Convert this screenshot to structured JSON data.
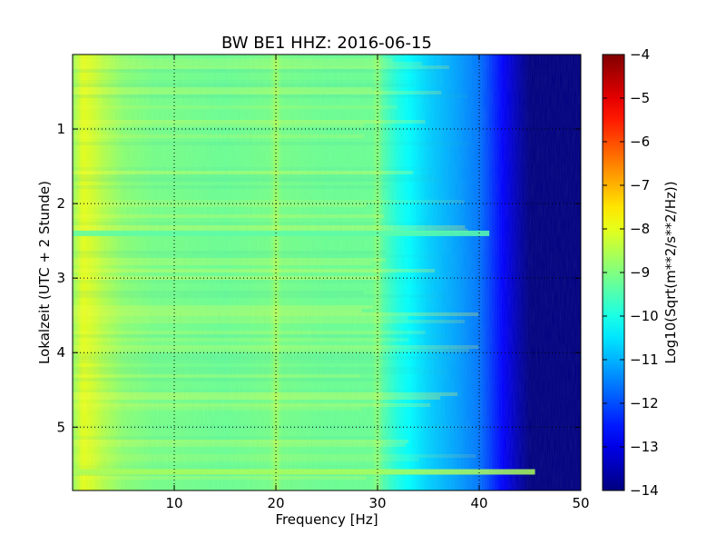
{
  "chart_data": {
    "type": "heatmap",
    "title": "BW BE1 HHZ: 2016-06-15",
    "xlabel": "Frequency [Hz]",
    "ylabel": "Lokalzeit (UTC + 2 Stunde)",
    "xlim": [
      0,
      50
    ],
    "ylim": [
      5.85,
      0
    ],
    "xticks": [
      10,
      20,
      30,
      40,
      50
    ],
    "xtick_labels": [
      "10",
      "20",
      "30",
      "40",
      "50"
    ],
    "yticks": [
      1,
      2,
      3,
      4,
      5
    ],
    "ytick_labels": [
      "1",
      "2",
      "3",
      "4",
      "5"
    ],
    "grid": true,
    "colorbar": {
      "label": "Log10(Sqrt(m**2/s**2/Hz))",
      "vmin": -14,
      "vmax": -4,
      "ticks": [
        -4,
        -5,
        -6,
        -7,
        -8,
        -9,
        -10,
        -11,
        -12,
        -13,
        -14
      ],
      "tick_labels": [
        "−4",
        "−5",
        "−6",
        "−7",
        "−8",
        "−9",
        "−10",
        "−11",
        "−12",
        "−13",
        "−14"
      ],
      "colormap": "jet"
    },
    "frequency_profile": {
      "frequency_hz": [
        0,
        1,
        2,
        3,
        5,
        8,
        10,
        15,
        19.5,
        20,
        20.5,
        25,
        29.5,
        30,
        30.5,
        32,
        35,
        38,
        40,
        42,
        44,
        45,
        50
      ],
      "log10_amplitude": [
        -8.8,
        -8.0,
        -8.2,
        -8.5,
        -8.9,
        -9.1,
        -9.1,
        -9.2,
        -9.1,
        -8.7,
        -9.1,
        -9.2,
        -9.2,
        -8.9,
        -9.4,
        -10.0,
        -10.7,
        -11.2,
        -11.6,
        -12.6,
        -13.6,
        -14.0,
        -14.0
      ]
    },
    "bright_bands": [
      {
        "time_h": 5.6,
        "max_freq_hz": 45.5,
        "log10_amplitude": -8.6
      },
      {
        "time_h": 2.4,
        "max_freq_hz": 41,
        "log10_amplitude": -9.4
      }
    ]
  }
}
